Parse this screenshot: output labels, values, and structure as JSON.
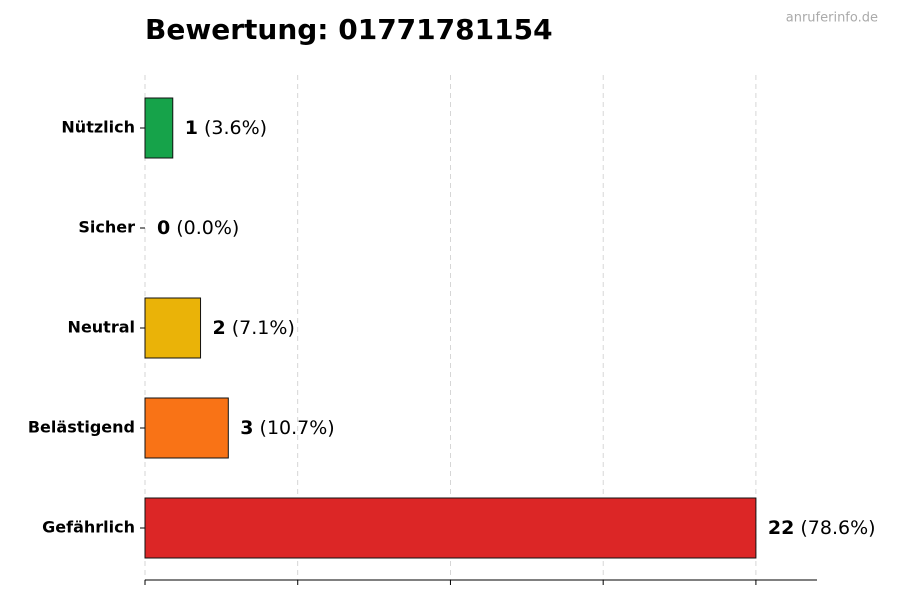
{
  "chart_data": {
    "type": "barh",
    "title": "Bewertung: 01771781154",
    "watermark": "anruferinfo.de",
    "categories": [
      "Nützlich",
      "Sicher",
      "Neutral",
      "Belästigend",
      "Gefährlich"
    ],
    "values": [
      1,
      0,
      2,
      3,
      22
    ],
    "percent_labels": [
      "(3.6%)",
      "(0.0%)",
      "(7.1%)",
      "(10.7%)",
      "(78.6%)"
    ],
    "colors": [
      "#16a34a",
      "#6b7280",
      "#eab308",
      "#f97316",
      "#dc2626"
    ],
    "xlim": [
      0,
      24.2
    ],
    "xticks": [
      0,
      5.5,
      11,
      16.5,
      22
    ],
    "grid": true
  }
}
